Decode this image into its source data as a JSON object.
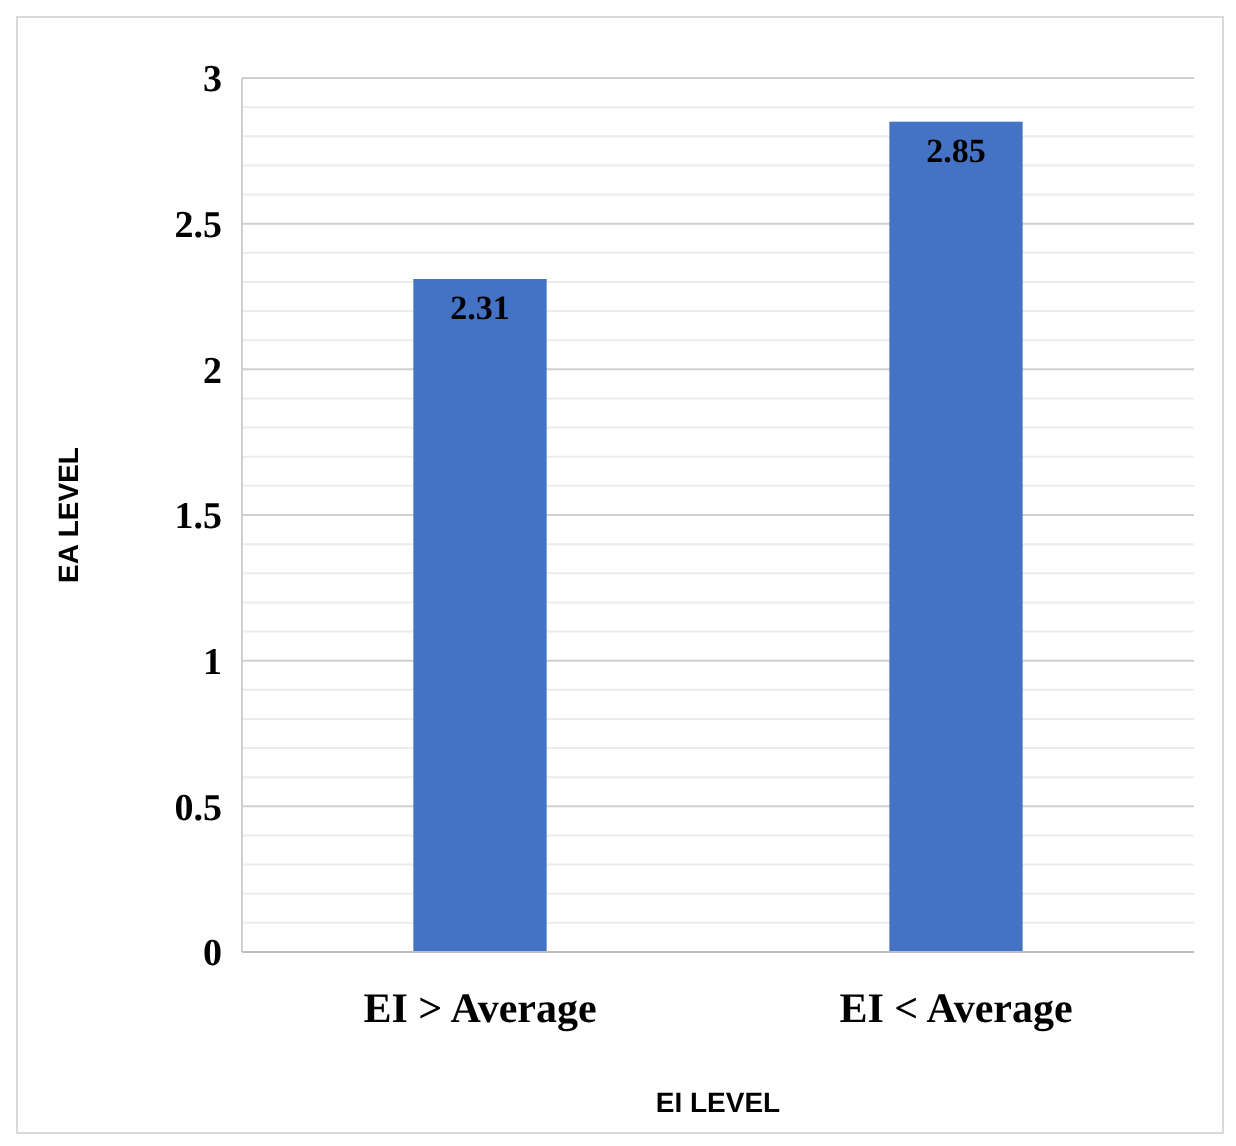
{
  "chart_data": {
    "type": "bar",
    "xlabel": "EI LEVEL",
    "ylabel": "EA LEVEL",
    "categories": [
      "EI > Average",
      "EI < Average"
    ],
    "values": [
      2.31,
      2.85
    ],
    "color": "#4472c4",
    "data_labels": true,
    "ylim": [
      0,
      3
    ],
    "yticks": [
      0,
      {
        "value": 0.1,
        "label": null
      },
      {
        "value": 0.2,
        "label": null
      },
      {
        "value": 0.3,
        "label": null
      },
      {
        "value": 0.4,
        "label": null
      },
      0.5,
      {
        "value": 0.6,
        "label": null
      },
      {
        "value": 0.7,
        "label": null
      },
      {
        "value": 0.8,
        "label": null
      },
      {
        "value": 0.9,
        "label": null
      },
      1,
      {
        "value": 1.1,
        "label": null
      },
      {
        "value": 1.2,
        "label": null
      },
      {
        "value": 1.3,
        "label": null
      },
      {
        "value": 1.4,
        "label": null
      },
      1.5,
      {
        "value": 1.6,
        "label": null
      },
      {
        "value": 1.7,
        "label": null
      },
      {
        "value": 1.8,
        "label": null
      },
      {
        "value": 1.9,
        "label": null
      },
      2,
      {
        "value": 2.1,
        "label": null
      },
      {
        "value": 2.2,
        "label": null
      },
      {
        "value": 2.3,
        "label": null
      },
      {
        "value": 2.4,
        "label": null
      },
      2.5,
      {
        "value": 2.6,
        "label": null
      },
      {
        "value": 2.7,
        "label": null
      },
      {
        "value": 2.8,
        "label": null
      },
      {
        "value": 2.9,
        "label": null
      },
      3
    ],
    "grid": true
  }
}
